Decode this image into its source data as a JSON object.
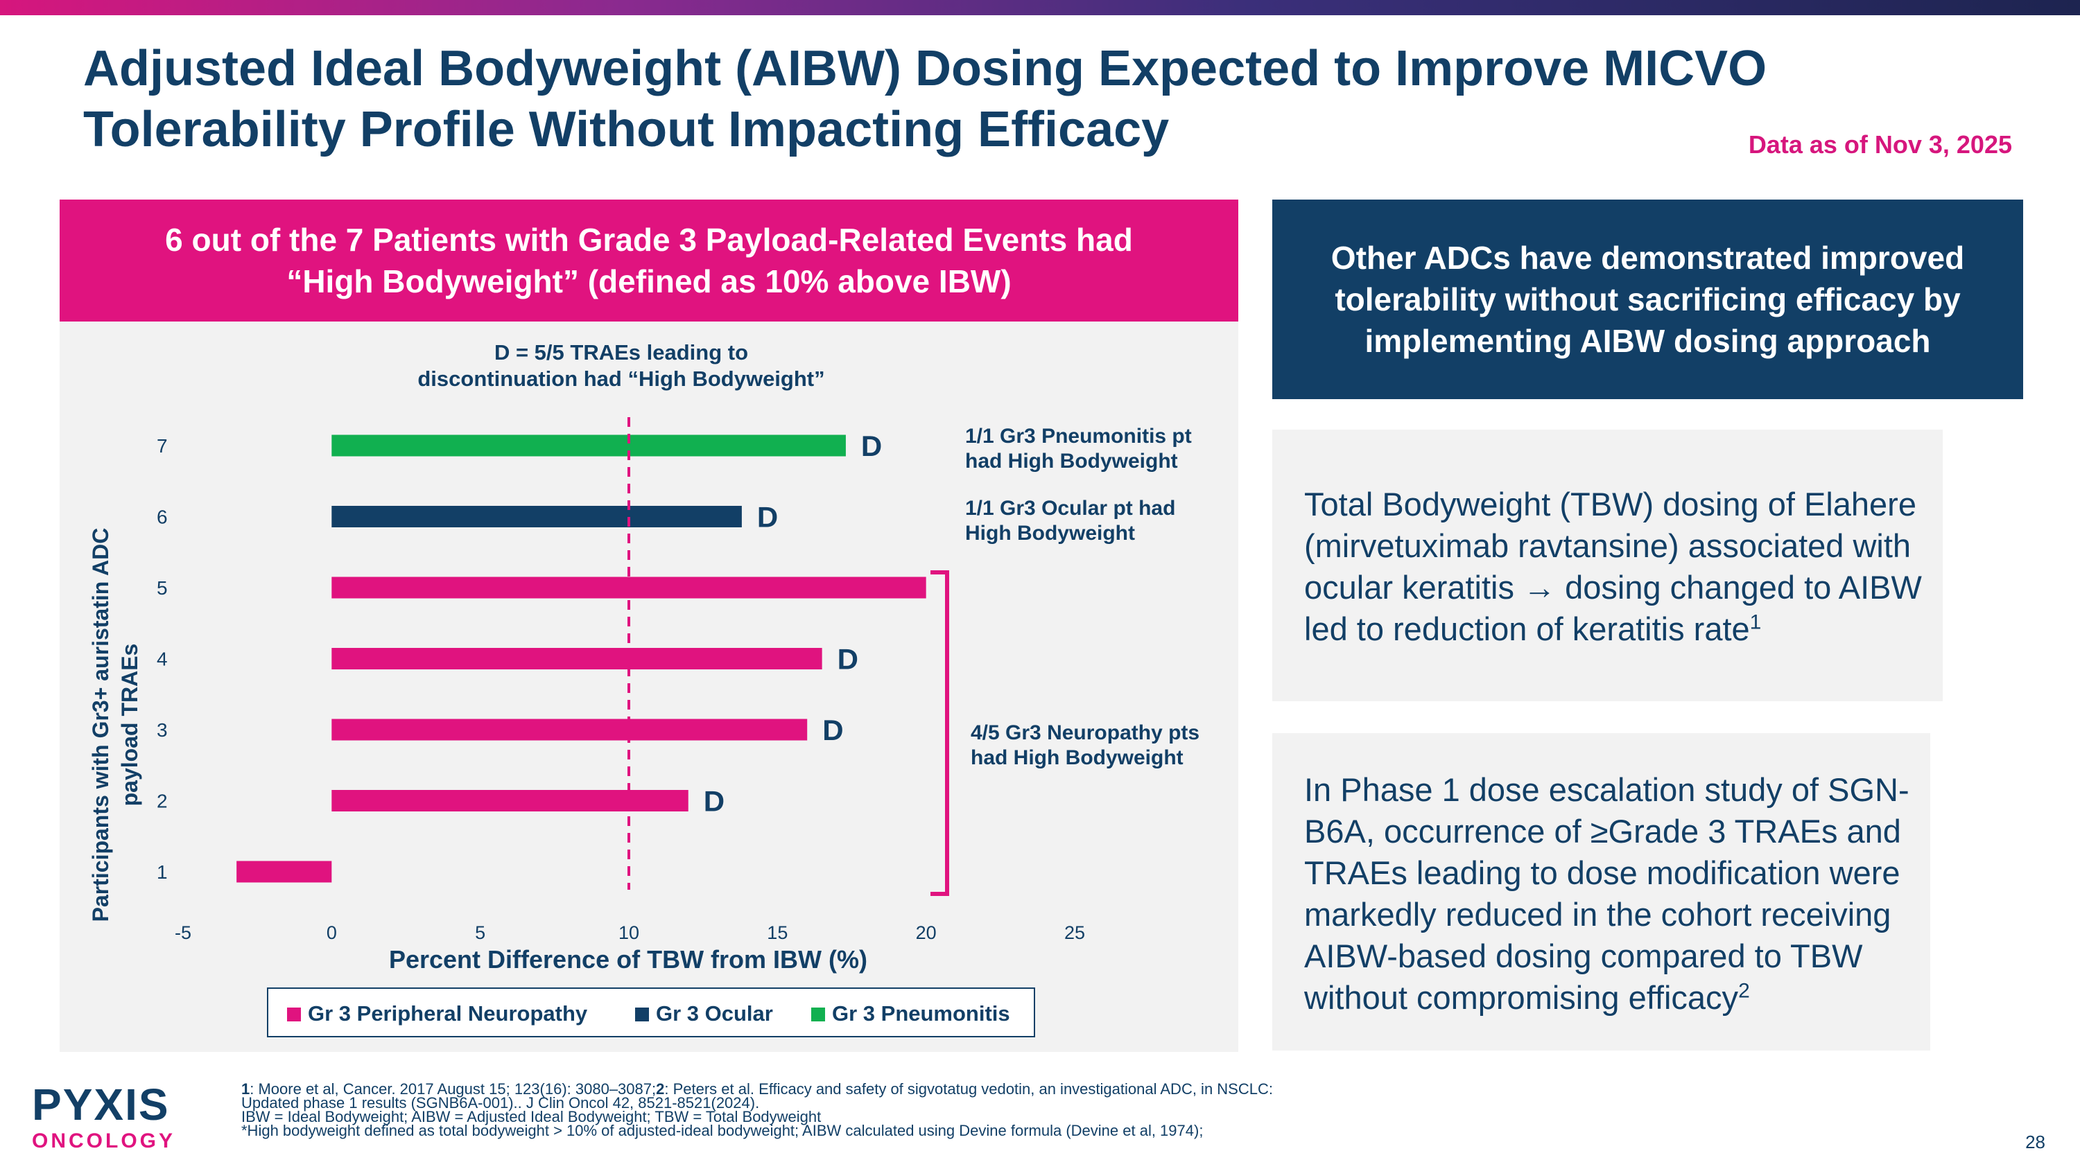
{
  "title_line1": "Adjusted Ideal Bodyweight (AIBW) Dosing Expected to Improve MICVO",
  "title_line2": "Tolerability Profile Without Impacting Efficacy",
  "as_of": "Data as of Nov 3, 2025",
  "left_header_line1": "6 out of the 7 Patients with Grade 3 Payload-Related Events had",
  "left_header_line2": "“High Bodyweight” (defined as 10% above IBW)",
  "right_box": {
    "line1": "Other ADCs have demonstrated improved",
    "line2": "tolerability without sacrificing efficacy by",
    "line3": "implementing AIBW dosing approach"
  },
  "grey_box1": {
    "line1": "Total Bodyweight (TBW) dosing of Elahere",
    "line2": "(mirvetuximab ravtansine) associated with",
    "line3": "ocular keratitis → dosing changed to AIBW",
    "line4": "led to reduction of keratitis rate",
    "sup": "1"
  },
  "grey_box2": {
    "line1": "In Phase 1 dose escalation study of SGN-",
    "line2": "B6A, occurrence of ≥Grade 3 TRAEs and",
    "line3": "TRAEs leading to dose modification were",
    "line4": "markedly reduced in the cohort receiving",
    "line5": "AIBW-based dosing compared to TBW",
    "line6": "without compromising efficacy",
    "sup": "2"
  },
  "chart_data": {
    "type": "bar",
    "orientation": "horizontal",
    "categories": [
      "1",
      "2",
      "3",
      "4",
      "5",
      "6",
      "7"
    ],
    "values": [
      -3.2,
      12,
      16,
      16.5,
      20,
      13.8,
      17.3
    ],
    "bar_series": [
      "Gr 3 Peripheral Neuropathy",
      "Gr 3 Peripheral Neuropathy",
      "Gr 3 Peripheral Neuropathy",
      "Gr 3 Peripheral Neuropathy",
      "Gr 3 Peripheral Neuropathy",
      "Gr 3 Ocular",
      "Gr 3 Pneumonitis"
    ],
    "bar_marks": [
      "",
      "D",
      "D",
      "D",
      "",
      "D",
      "D"
    ],
    "xlim": [
      -5,
      25
    ],
    "xticks": [
      "-5",
      "0",
      "5",
      "10",
      "15",
      "20",
      "25"
    ],
    "xlabel": "Percent Difference of TBW from IBW (%)",
    "ylabel_line1": "Participants with Gr3+ auristatin ADC",
    "ylabel_line2": "payload TRAEs",
    "reference_line_x": 10,
    "legend": [
      {
        "name": "Gr 3 Peripheral Neuropathy",
        "color": "#e0137f"
      },
      {
        "name": "Gr 3 Ocular",
        "color": "#123f66"
      },
      {
        "name": "Gr 3 Pneumonitis",
        "color": "#11b050"
      }
    ],
    "annotations": {
      "top_line1": "D = 5/5 TRAEs leading to",
      "top_line2": "discontinuation had “High Bodyweight”",
      "pneumonitis_line1": "1/1 Gr3 Pneumonitis pt",
      "pneumonitis_line2": "had High Bodyweight",
      "ocular_line1": "1/1 Gr3 Ocular pt had",
      "ocular_line2": "High Bodyweight",
      "neuropathy_line1": "4/5 Gr3 Neuropathy pts",
      "neuropathy_line2": "had High Bodyweight"
    }
  },
  "footnotes": {
    "ref1_num": "1",
    "ref1_text": ": Moore et al, Cancer. 2017 August 15; 123(16): 3080–3087;",
    "ref2_num": "2",
    "ref2_text": ": Peters et al. Efficacy and safety of sigvotatug vedotin, an investigational ADC, in NSCLC:",
    "line2": "Updated phase 1 results (SGNB6A-001).. J Clin Oncol 42, 8521-8521(2024).",
    "line3": "IBW = Ideal Bodyweight; AIBW = Adjusted Ideal Bodyweight; TBW = Total Bodyweight",
    "line4": "*High bodyweight defined as total bodyweight > 10% of adjusted-ideal bodyweight; AIBW calculated using Devine formula (Devine et al, 1974);"
  },
  "logo": {
    "line1": "PYXIS",
    "line2": "ONCOLOGY"
  },
  "page_number": "28",
  "colors": {
    "navy": "#123f66",
    "magenta": "#e0137f",
    "green": "#11b050",
    "panel": "#f2f2f2"
  }
}
